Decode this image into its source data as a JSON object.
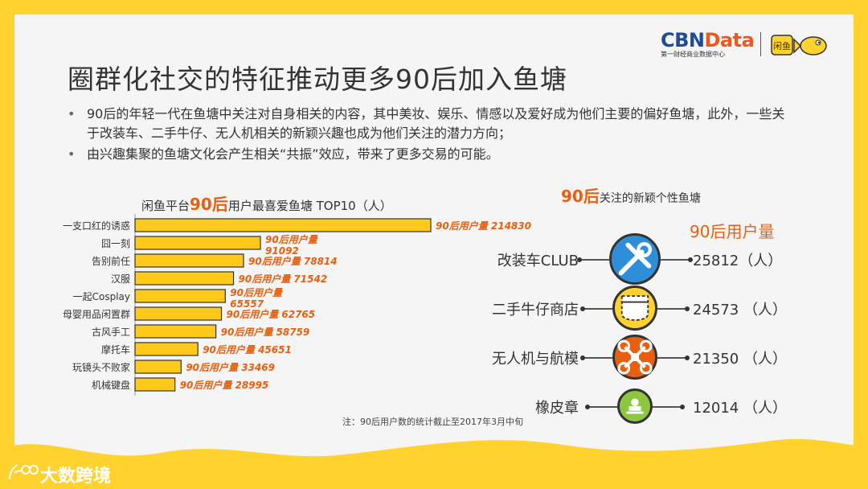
{
  "title": "圈群化社交的特征推动更多90后加入鱼塘",
  "bullets": [
    "90后的年轻一代在鱼塘中关注对自身相关的内容，其中美妆、娱乐、情感以及爱好成为他们主要的偏好鱼塘，此外，一些关于改装车、二手牛仔、无人机相关的新颖兴趣也成为他们关注的潜力方向；",
    "由兴趣集聚的鱼塘文化会产生相关“共振”效应，带来了更多交易的可能。"
  ],
  "logo": {
    "brand_prefix": "CBN",
    "brand_suffix": "Data",
    "subtitle": "第一财经商业数据中心",
    "partner": "闲鱼"
  },
  "left_chart": {
    "title_prefix": "闲鱼平台",
    "title_highlight": "90后",
    "title_suffix": "用户最喜爱鱼塘 TOP10（人）"
  },
  "chart_data": {
    "type": "bar",
    "orientation": "horizontal",
    "categories": [
      "一支口红的诱惑",
      "囧一刻",
      "告别前任",
      "汉服",
      "一起Cosplay",
      "母婴用品闲置群",
      "古风手工",
      "摩托车",
      "玩镜头不败家",
      "机械键盘"
    ],
    "values": [
      214830,
      91092,
      78814,
      71542,
      65557,
      62765,
      58759,
      45651,
      33469,
      28995
    ],
    "label_prefix": "90后用户量",
    "bar_color": "#FFC91A",
    "label_color": "#E8600F",
    "split_labels": [
      false,
      true,
      false,
      false,
      true,
      false,
      false,
      false,
      false,
      false
    ]
  },
  "note": "注：90后用户数的统计截止至2017年3月中旬",
  "right_panel": {
    "title_highlight": "90后",
    "title_suffix": "关注的新颖个性鱼塘",
    "users_header": "90后用户量",
    "items": [
      {
        "name": "改装车CLUB",
        "value": "25812（人）",
        "icon": "tools-icon",
        "color": "#2E8FD8"
      },
      {
        "name": "二手牛仔商店",
        "value": "24573 （人）",
        "icon": "denim-pocket-icon",
        "color": "#FFD22E"
      },
      {
        "name": "无人机与航模",
        "value": "21350 （人）",
        "icon": "drone-icon",
        "color": "#E8600F"
      },
      {
        "name": "橡皮章",
        "value": "12014 （人）",
        "icon": "stamp-icon",
        "color": "#8DC63F"
      }
    ]
  },
  "watermark": "大数跨境"
}
